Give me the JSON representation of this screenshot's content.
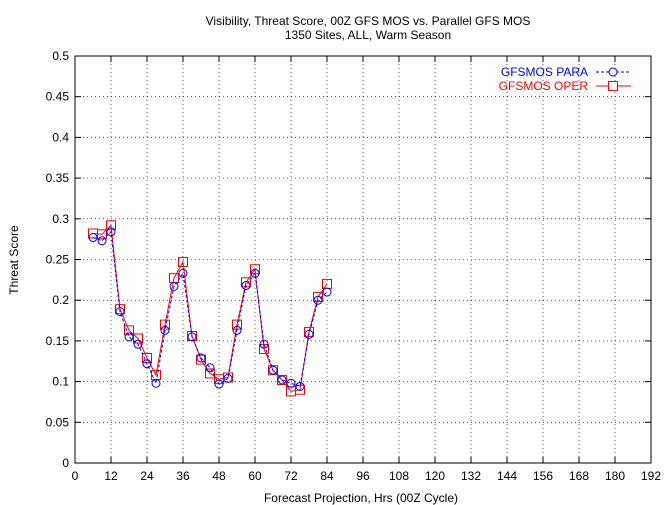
{
  "chart_data": {
    "type": "line",
    "title": "Visibility, Threat Score, 00Z GFS MOS vs. Parallel GFS MOS",
    "subtitle": "1350 Sites, ALL, Warm Season",
    "xlabel": "Forecast Projection, Hrs (00Z Cycle)",
    "ylabel": "Threat Score",
    "xlim": [
      0,
      192
    ],
    "ylim": [
      0,
      0.5
    ],
    "xticks": [
      "0",
      "12",
      "24",
      "36",
      "48",
      "60",
      "72",
      "84",
      "96",
      "108",
      "120",
      "132",
      "144",
      "156",
      "168",
      "180",
      "192"
    ],
    "yticks": [
      "0",
      "0.05",
      "0.1",
      "0.15",
      "0.2",
      "0.25",
      "0.3",
      "0.35",
      "0.4",
      "0.45",
      "0.5"
    ],
    "grid": true,
    "legend_position": "top-right",
    "x": [
      6,
      9,
      12,
      15,
      18,
      21,
      24,
      27,
      30,
      33,
      36,
      39,
      42,
      45,
      48,
      51,
      54,
      57,
      60,
      63,
      66,
      69,
      72,
      75,
      78,
      81,
      84
    ],
    "series": [
      {
        "name": "GFSMOS PARA",
        "color": "#0000ff",
        "marker": "circle",
        "line_style": "dashed",
        "values": [
          0.277,
          0.273,
          0.284,
          0.186,
          0.155,
          0.146,
          0.122,
          0.098,
          0.163,
          0.217,
          0.233,
          0.155,
          0.129,
          0.117,
          0.097,
          0.104,
          0.163,
          0.218,
          0.233,
          0.146,
          0.114,
          0.102,
          0.098,
          0.094,
          0.158,
          0.2,
          0.21
        ]
      },
      {
        "name": "GFSMOS OPER",
        "color": "#ff0000",
        "marker": "square",
        "line_style": "solid",
        "values": [
          0.282,
          0.281,
          0.292,
          0.189,
          0.163,
          0.153,
          0.129,
          0.108,
          0.17,
          0.227,
          0.247,
          0.156,
          0.127,
          0.11,
          0.103,
          0.105,
          0.17,
          0.222,
          0.238,
          0.14,
          0.114,
          0.102,
          0.088,
          0.09,
          0.161,
          0.204,
          0.22
        ]
      }
    ]
  }
}
